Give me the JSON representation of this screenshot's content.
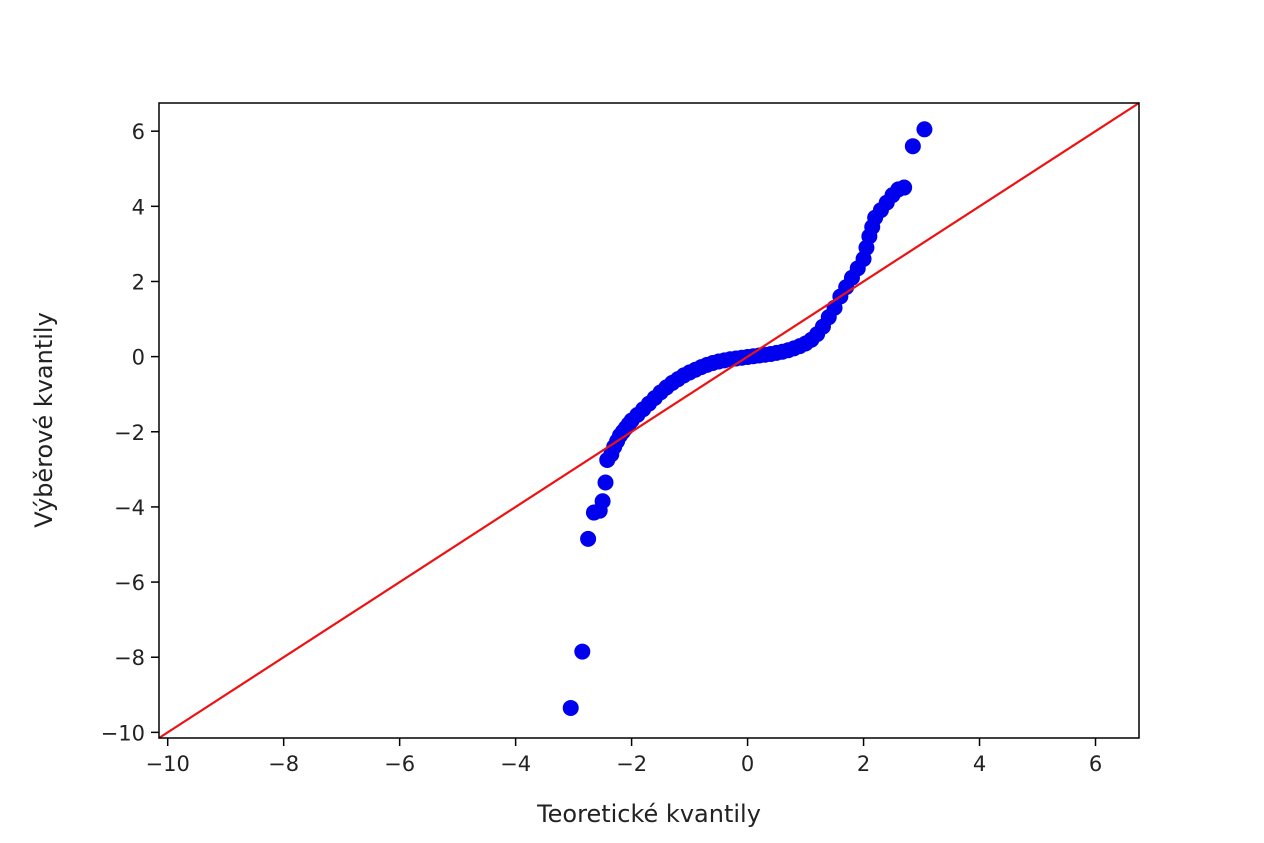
{
  "chart_data": {
    "type": "scatter",
    "title": "",
    "xlabel": "Teoretické kvantily",
    "ylabel": "Výběrové kvantily",
    "xlim": [
      -10.15,
      6.75
    ],
    "ylim": [
      -10.15,
      6.75
    ],
    "x_ticks": [
      -10,
      -8,
      -6,
      -4,
      -2,
      0,
      2,
      4,
      6
    ],
    "y_ticks": [
      -10,
      -8,
      -6,
      -4,
      -2,
      0,
      2,
      4,
      6
    ],
    "x_tick_labels": [
      "−10",
      "−8",
      "−6",
      "−4",
      "−2",
      "0",
      "2",
      "4",
      "6"
    ],
    "y_tick_labels": [
      "−10",
      "−8",
      "−6",
      "−4",
      "−2",
      "0",
      "2",
      "4",
      "6"
    ],
    "grid": false,
    "series": [
      {
        "kind": "points",
        "color": "#0000ee",
        "points": [
          [
            -3.05,
            -9.35
          ],
          [
            -2.85,
            -7.85
          ],
          [
            -2.75,
            -4.85
          ],
          [
            -2.65,
            -4.15
          ],
          [
            -2.55,
            -4.1
          ],
          [
            -2.5,
            -3.85
          ],
          [
            -2.45,
            -3.35
          ],
          [
            -2.42,
            -2.75
          ],
          [
            -2.35,
            -2.6
          ],
          [
            -2.3,
            -2.4
          ],
          [
            -2.25,
            -2.25
          ],
          [
            -2.2,
            -2.1
          ],
          [
            -2.15,
            -2.0
          ],
          [
            -2.1,
            -1.9
          ],
          [
            -2.05,
            -1.8
          ],
          [
            -2.0,
            -1.7
          ],
          [
            -1.9,
            -1.55
          ],
          [
            -1.8,
            -1.4
          ],
          [
            -1.7,
            -1.25
          ],
          [
            -1.6,
            -1.1
          ],
          [
            -1.5,
            -0.95
          ],
          [
            -1.4,
            -0.82
          ],
          [
            -1.3,
            -0.7
          ],
          [
            -1.2,
            -0.6
          ],
          [
            -1.1,
            -0.5
          ],
          [
            -1.0,
            -0.42
          ],
          [
            -0.9,
            -0.35
          ],
          [
            -0.8,
            -0.28
          ],
          [
            -0.7,
            -0.22
          ],
          [
            -0.6,
            -0.17
          ],
          [
            -0.5,
            -0.13
          ],
          [
            -0.4,
            -0.1
          ],
          [
            -0.3,
            -0.07
          ],
          [
            -0.2,
            -0.05
          ],
          [
            -0.1,
            -0.03
          ],
          [
            0.0,
            -0.01
          ],
          [
            0.1,
            0.01
          ],
          [
            0.2,
            0.03
          ],
          [
            0.3,
            0.05
          ],
          [
            0.4,
            0.07
          ],
          [
            0.5,
            0.1
          ],
          [
            0.6,
            0.13
          ],
          [
            0.7,
            0.17
          ],
          [
            0.8,
            0.22
          ],
          [
            0.9,
            0.28
          ],
          [
            1.0,
            0.35
          ],
          [
            1.1,
            0.45
          ],
          [
            1.2,
            0.6
          ],
          [
            1.3,
            0.8
          ],
          [
            1.4,
            1.05
          ],
          [
            1.5,
            1.3
          ],
          [
            1.6,
            1.6
          ],
          [
            1.7,
            1.85
          ],
          [
            1.8,
            2.1
          ],
          [
            1.9,
            2.35
          ],
          [
            2.0,
            2.6
          ],
          [
            2.05,
            2.9
          ],
          [
            2.1,
            3.2
          ],
          [
            2.15,
            3.45
          ],
          [
            2.2,
            3.7
          ],
          [
            2.3,
            3.9
          ],
          [
            2.4,
            4.1
          ],
          [
            2.5,
            4.3
          ],
          [
            2.6,
            4.45
          ],
          [
            2.7,
            4.5
          ],
          [
            2.85,
            5.6
          ],
          [
            3.05,
            6.05
          ]
        ]
      },
      {
        "kind": "reference-line",
        "color": "#ee1111",
        "x": [
          -10.15,
          6.75
        ],
        "y": [
          -10.15,
          6.75
        ]
      }
    ]
  }
}
